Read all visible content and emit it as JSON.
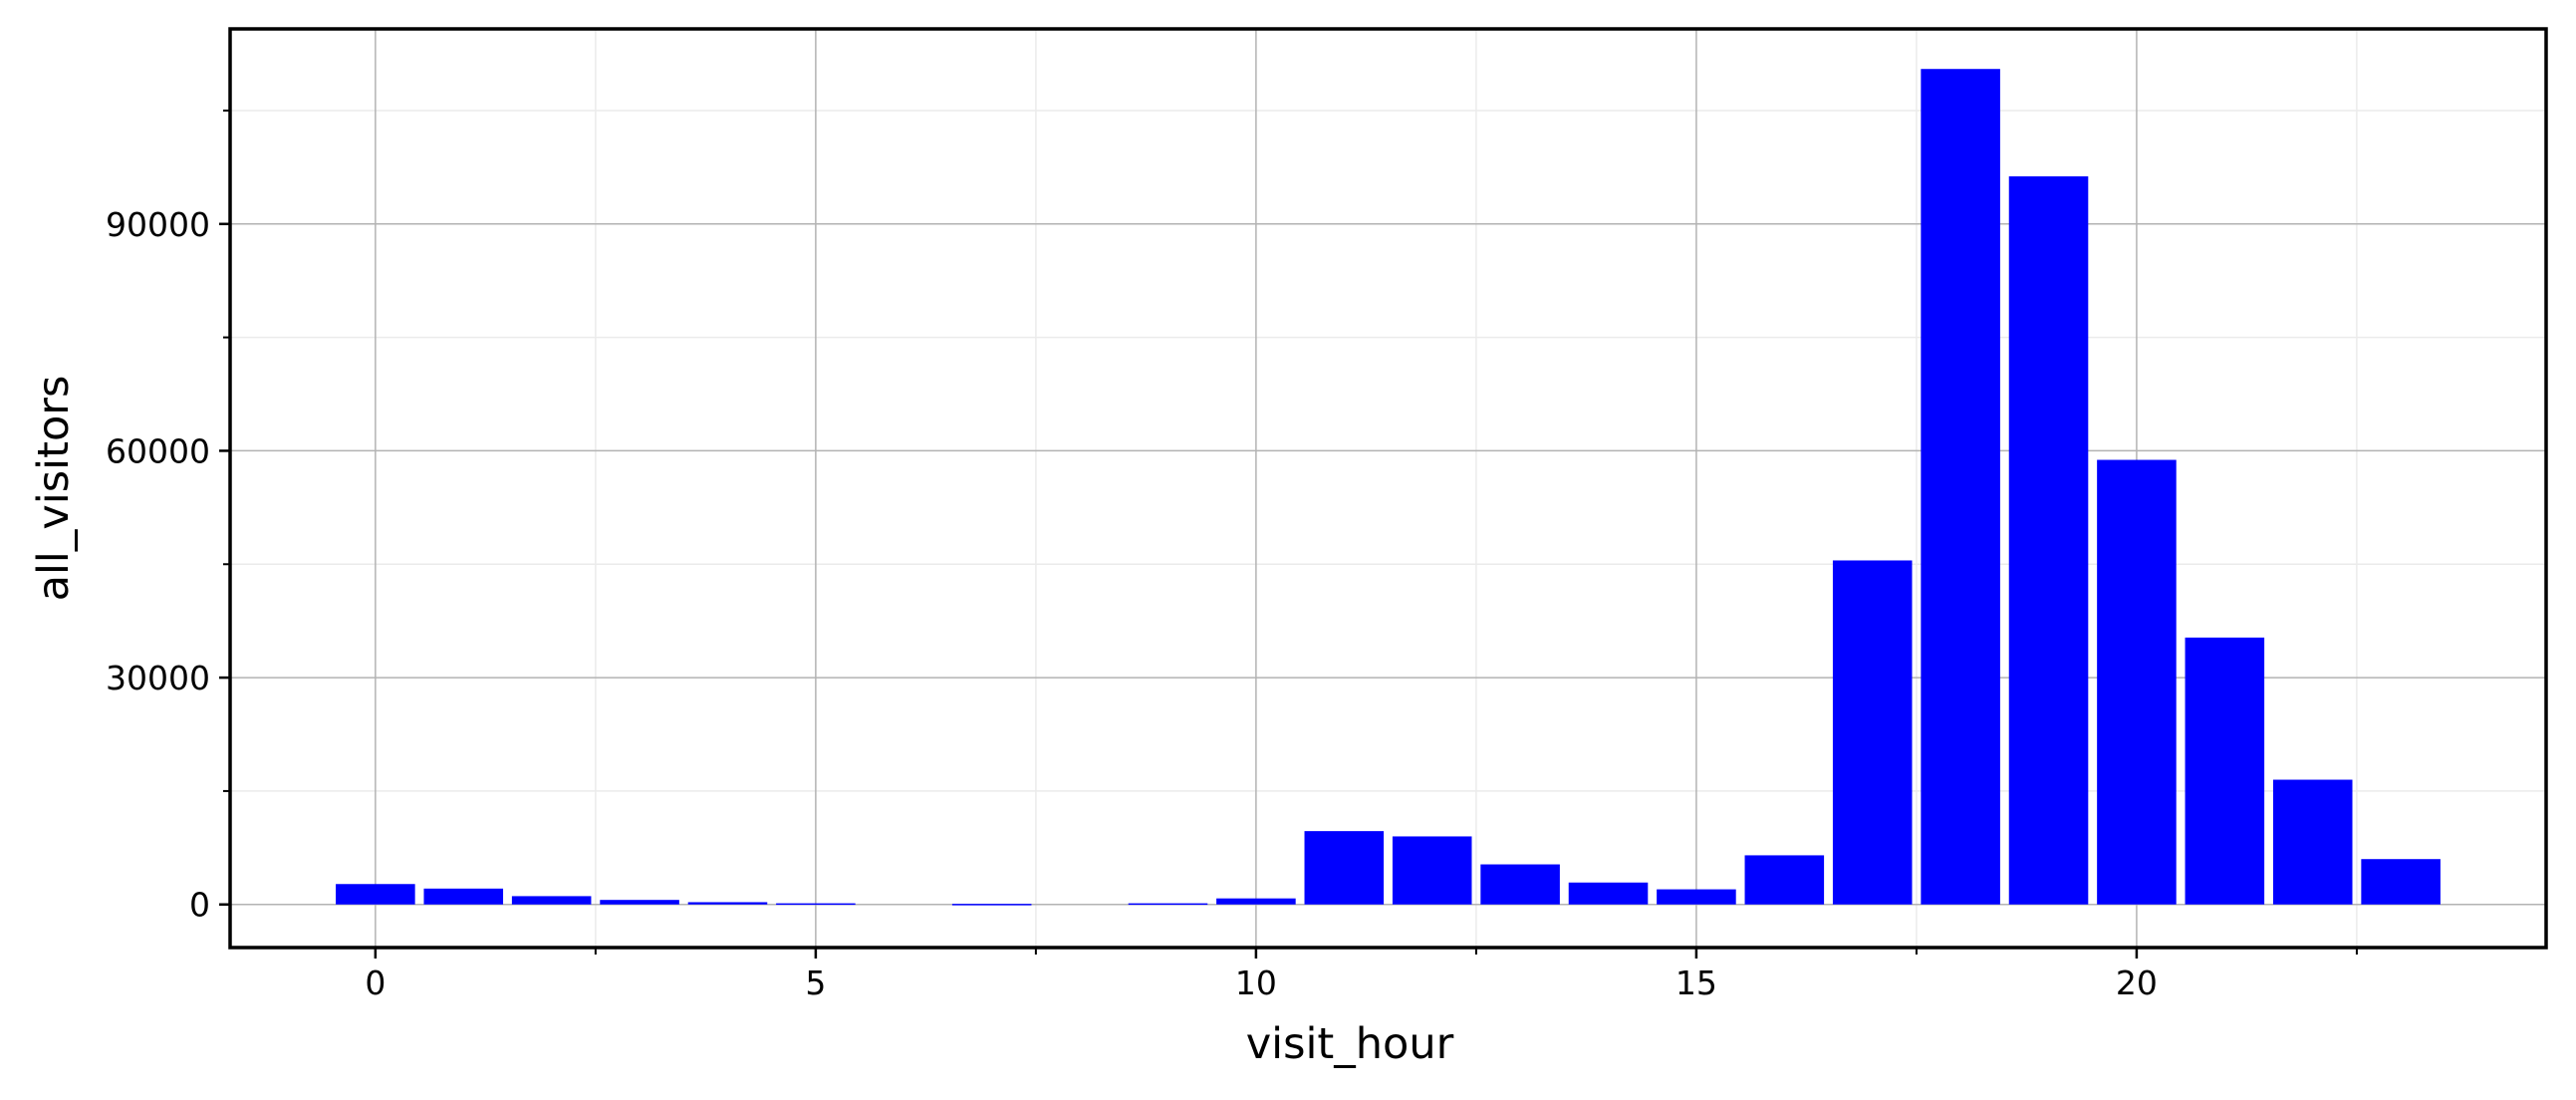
{
  "chart_data": {
    "type": "bar",
    "xlabel": "visit_hour",
    "ylabel": "all_visitors",
    "x": [
      0,
      1,
      2,
      3,
      4,
      5,
      6,
      7,
      8,
      9,
      10,
      11,
      12,
      13,
      14,
      15,
      16,
      17,
      18,
      19,
      20,
      21,
      22,
      23
    ],
    "values": [
      2700,
      2100,
      1100,
      600,
      300,
      150,
      0,
      80,
      0,
      150,
      800,
      9700,
      9000,
      5300,
      2900,
      2000,
      6500,
      45500,
      110500,
      96300,
      58800,
      35300,
      16500,
      6000
    ],
    "xlim": [
      -1.65,
      24.65
    ],
    "ylim": [
      -5700,
      115800
    ],
    "x_ticks": [
      0,
      5,
      10,
      15,
      20
    ],
    "x_tick_labels": [
      "0",
      "5",
      "10",
      "15",
      "20"
    ],
    "y_ticks": [
      0,
      30000,
      60000,
      90000
    ],
    "y_tick_labels": [
      "0",
      "30000",
      "60000",
      "90000"
    ],
    "y_minor_ticks": [
      15000,
      45000,
      75000,
      105000
    ],
    "x_minor_ticks": [
      2.5,
      7.5,
      12.5,
      17.5,
      22.5
    ],
    "bar_width": 0.9,
    "grid": true,
    "colors": {
      "bar": "#0000ff",
      "grid_major": "#b3b3b3",
      "grid_minor": "#ebebeb",
      "frame": "#000000"
    }
  }
}
